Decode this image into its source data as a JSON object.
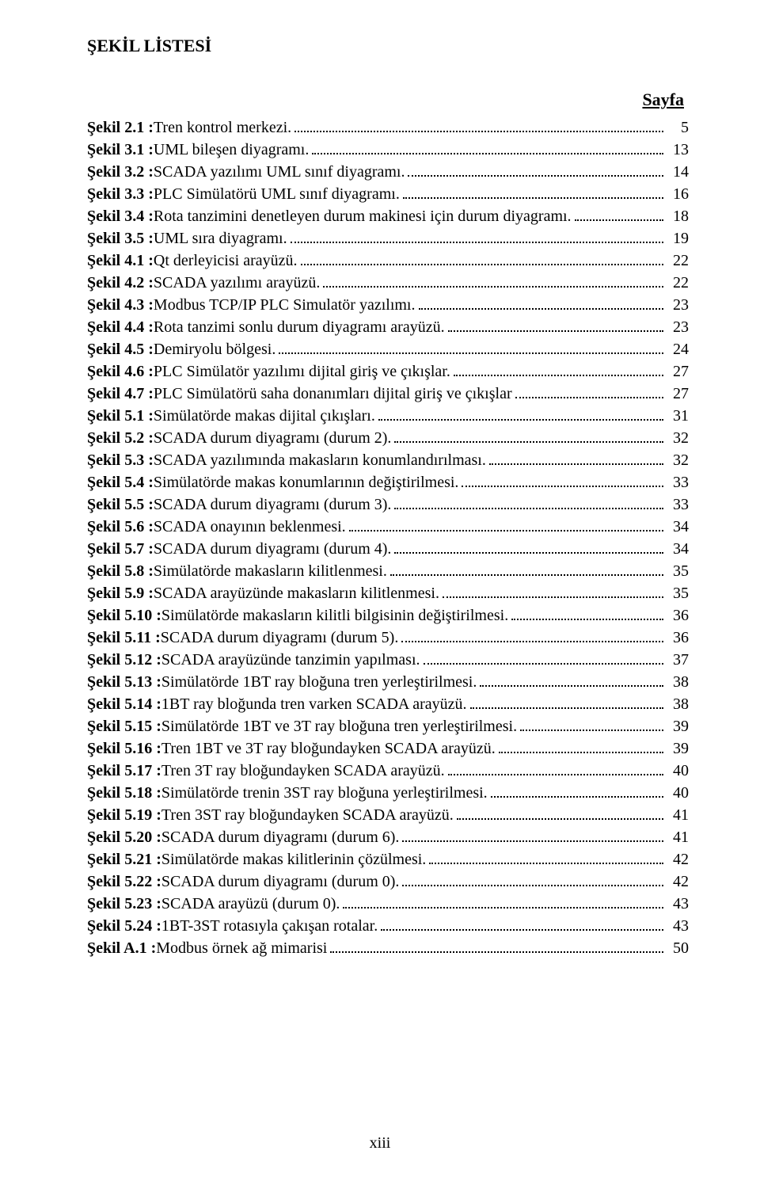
{
  "title": "ŞEKİL LİSTESİ",
  "page_label": "Sayfa",
  "footer": "xiii",
  "entries": [
    {
      "label": "Şekil 2.1 :",
      "desc": " Tren kontrol merkezi.",
      "page": "5"
    },
    {
      "label": "Şekil 3.1 :",
      "desc": " UML bileşen diyagramı.",
      "page": "13"
    },
    {
      "label": "Şekil 3.2 :",
      "desc": " SCADA yazılımı UML sınıf diyagramı.",
      "page": "14"
    },
    {
      "label": "Şekil 3.3 :",
      "desc": " PLC Simülatörü UML sınıf diyagramı.",
      "page": "16"
    },
    {
      "label": "Şekil 3.4 :",
      "desc": " Rota tanzimini denetleyen durum makinesi için durum diyagramı.",
      "page": "18"
    },
    {
      "label": "Şekil 3.5 :",
      "desc": " UML sıra diyagramı.",
      "page": "19"
    },
    {
      "label": "Şekil 4.1 :",
      "desc": " Qt derleyicisi arayüzü.",
      "page": "22"
    },
    {
      "label": "Şekil 4.2 :",
      "desc": " SCADA yazılımı arayüzü.",
      "page": "22"
    },
    {
      "label": "Şekil 4.3 :",
      "desc": " Modbus TCP/IP PLC Simulatör yazılımı.",
      "page": "23"
    },
    {
      "label": "Şekil 4.4 :",
      "desc": " Rota tanzimi sonlu durum diyagramı arayüzü.",
      "page": "23"
    },
    {
      "label": "Şekil 4.5 :",
      "desc": " Demiryolu bölgesi.",
      "page": "24"
    },
    {
      "label": "Şekil 4.6 :",
      "desc": " PLC Simülatör yazılımı dijital giriş ve çıkışlar.",
      "page": "27"
    },
    {
      "label": "Şekil 4.7 :",
      "desc": " PLC Simülatörü saha donanımları dijital giriş ve çıkışlar",
      "page": "27"
    },
    {
      "label": "Şekil 5.1 :",
      "desc": " Simülatörde makas dijital çıkışları.",
      "page": "31"
    },
    {
      "label": "Şekil 5.2 :",
      "desc": " SCADA durum diyagramı (durum 2).",
      "page": "32"
    },
    {
      "label": "Şekil 5.3 :",
      "desc": " SCADA yazılımında makasların konumlandırılması.",
      "page": "32"
    },
    {
      "label": "Şekil 5.4 :",
      "desc": " Simülatörde makas konumlarının değiştirilmesi.",
      "page": "33"
    },
    {
      "label": "Şekil 5.5 :",
      "desc": " SCADA durum diyagramı (durum 3).",
      "page": "33"
    },
    {
      "label": "Şekil 5.6 :",
      "desc": " SCADA onayının beklenmesi.",
      "page": "34"
    },
    {
      "label": "Şekil 5.7 :",
      "desc": " SCADA durum diyagramı (durum 4).",
      "page": "34"
    },
    {
      "label": "Şekil 5.8 :",
      "desc": " Simülatörde makasların kilitlenmesi.",
      "page": "35"
    },
    {
      "label": "Şekil 5.9 :",
      "desc": " SCADA arayüzünde makasların kilitlenmesi.",
      "page": "35"
    },
    {
      "label": "Şekil 5.10 :",
      "desc": " Simülatörde makasların kilitli bilgisinin değiştirilmesi.",
      "page": "36"
    },
    {
      "label": "Şekil 5.11 :",
      "desc": " SCADA durum diyagramı (durum 5).",
      "page": "36"
    },
    {
      "label": "Şekil 5.12 :",
      "desc": " SCADA arayüzünde tanzimin yapılması.",
      "page": "37"
    },
    {
      "label": "Şekil 5.13 :",
      "desc": " Simülatörde 1BT ray bloğuna tren yerleştirilmesi.",
      "page": "38"
    },
    {
      "label": "Şekil 5.14 :",
      "desc": " 1BT ray bloğunda tren varken SCADA arayüzü.",
      "page": "38"
    },
    {
      "label": "Şekil 5.15 :",
      "desc": " Simülatörde 1BT ve 3T ray bloğuna tren yerleştirilmesi.",
      "page": "39"
    },
    {
      "label": "Şekil 5.16 :",
      "desc": " Tren 1BT ve 3T ray bloğundayken SCADA arayüzü.",
      "page": "39"
    },
    {
      "label": "Şekil 5.17 :",
      "desc": " Tren 3T ray bloğundayken SCADA arayüzü.",
      "page": "40"
    },
    {
      "label": "Şekil 5.18 :",
      "desc": " Simülatörde trenin 3ST ray bloğuna yerleştirilmesi.",
      "page": "40"
    },
    {
      "label": "Şekil 5.19 :",
      "desc": " Tren 3ST ray bloğundayken SCADA arayüzü.",
      "page": "41"
    },
    {
      "label": "Şekil 5.20 :",
      "desc": " SCADA durum diyagramı (durum 6).",
      "page": "41"
    },
    {
      "label": "Şekil 5.21 :",
      "desc": " Simülatörde makas kilitlerinin çözülmesi.",
      "page": "42"
    },
    {
      "label": "Şekil 5.22 :",
      "desc": " SCADA durum diyagramı (durum 0).",
      "page": "42"
    },
    {
      "label": "Şekil 5.23 :",
      "desc": " SCADA arayüzü (durum 0).",
      "page": "43"
    },
    {
      "label": "Şekil 5.24 :",
      "desc": " 1BT-3ST rotasıyla çakışan rotalar.",
      "page": "43"
    },
    {
      "label": "Şekil A.1 :",
      "desc": " Modbus örnek ağ mimarisi",
      "page": "50"
    }
  ]
}
